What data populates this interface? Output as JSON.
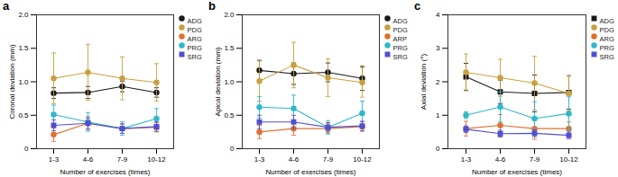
{
  "chart_data": [
    {
      "type": "line",
      "title": "a",
      "xlabel": "Number of exercises (times)",
      "ylabel": "Coronal deviation (mm)",
      "categories": [
        "1-3",
        "4-6",
        "7-9",
        "10-12"
      ],
      "ylim": [
        0,
        2.0
      ],
      "yticks": [
        0,
        0.5,
        {
          "value": 1.0,
          "label": "1.0"
        },
        1.5,
        {
          "value": 2.0,
          "label": "2.0"
        }
      ],
      "grid": false,
      "legend": "upper right",
      "series": [
        {
          "name": "ADG",
          "color": "#1a1a1a",
          "marker": "circle",
          "values": [
            0.83,
            0.84,
            0.93,
            0.84
          ],
          "yerr": [
            0.08,
            0.09,
            0.08,
            0.07
          ]
        },
        {
          "name": "PDG",
          "color": "#c8a040",
          "marker": "circle",
          "values": [
            1.05,
            1.14,
            1.05,
            0.99
          ],
          "yerr": [
            0.38,
            0.42,
            0.32,
            0.28
          ]
        },
        {
          "name": "ARG",
          "color": "#e07030",
          "marker": "circle",
          "values": [
            0.21,
            0.38,
            0.3,
            0.32
          ],
          "yerr": [
            0.1,
            0.1,
            0.07,
            0.07
          ]
        },
        {
          "name": "PRG",
          "color": "#30b8c8",
          "marker": "circle",
          "values": [
            0.51,
            0.4,
            0.3,
            0.45
          ],
          "yerr": [
            0.14,
            0.14,
            0.1,
            0.15
          ]
        },
        {
          "name": "SRG",
          "color": "#5050d0",
          "marker": "square",
          "values": [
            0.35,
            0.38,
            0.3,
            0.33
          ],
          "yerr": [
            0.08,
            0.08,
            0.07,
            0.07
          ]
        }
      ]
    },
    {
      "type": "line",
      "title": "b",
      "xlabel": "Number of exercises (times)",
      "ylabel": "Apical deviation (mm)",
      "categories": [
        "1-3",
        "4-6",
        "7-9",
        "10-12"
      ],
      "ylim": [
        0,
        2.0
      ],
      "yticks": [
        0,
        0.5,
        {
          "value": 1.0,
          "label": "1.0"
        },
        1.5,
        {
          "value": 2.0,
          "label": "2.0"
        }
      ],
      "grid": false,
      "legend": "upper right",
      "series": [
        {
          "name": "ADG",
          "color": "#1a1a1a",
          "marker": "circle",
          "values": [
            1.17,
            1.12,
            1.14,
            1.05
          ],
          "yerr": [
            0.15,
            0.16,
            0.14,
            0.18
          ]
        },
        {
          "name": "PDG",
          "color": "#c8a040",
          "marker": "circle",
          "values": [
            1.01,
            1.25,
            1.06,
            0.99
          ],
          "yerr": [
            0.3,
            0.34,
            0.28,
            0.22
          ]
        },
        {
          "name": "ARP",
          "color": "#e07030",
          "marker": "circle",
          "values": [
            0.25,
            0.3,
            0.3,
            0.33
          ],
          "yerr": [
            0.1,
            0.1,
            0.07,
            0.07
          ]
        },
        {
          "name": "PRG",
          "color": "#30b8c8",
          "marker": "circle",
          "values": [
            0.62,
            0.6,
            0.32,
            0.53
          ],
          "yerr": [
            0.16,
            0.2,
            0.1,
            0.18
          ]
        },
        {
          "name": "SRG",
          "color": "#5050d0",
          "marker": "square",
          "values": [
            0.4,
            0.4,
            0.32,
            0.34
          ],
          "yerr": [
            0.1,
            0.1,
            0.07,
            0.07
          ]
        }
      ]
    },
    {
      "type": "line",
      "title": "c",
      "xlabel": "Number of exercises (times)",
      "ylabel": "Axial deviation (°)",
      "categories": [
        "1-3",
        "4-6",
        "7-9",
        "10-12"
      ],
      "ylim": [
        0,
        4
      ],
      "yticks": [
        0,
        1,
        2,
        3,
        4
      ],
      "grid": false,
      "legend": "upper right",
      "series": [
        {
          "name": "ADG",
          "color": "#1a1a1a",
          "marker": "square",
          "values": [
            2.15,
            1.7,
            1.65,
            1.68
          ],
          "yerr": [
            0.4,
            0.35,
            0.55,
            0.5
          ]
        },
        {
          "name": "PDG",
          "color": "#c8a040",
          "marker": "circle",
          "values": [
            2.28,
            2.12,
            1.96,
            1.65
          ],
          "yerr": [
            0.55,
            0.55,
            0.8,
            0.52
          ]
        },
        {
          "name": "ARG",
          "color": "#e07030",
          "marker": "circle",
          "values": [
            0.6,
            0.7,
            0.6,
            0.6
          ],
          "yerr": [
            0.22,
            0.32,
            0.32,
            0.2
          ]
        },
        {
          "name": "PRG",
          "color": "#30b8c8",
          "marker": "circle",
          "values": [
            1.0,
            1.25,
            0.9,
            1.05
          ],
          "yerr": [
            0.1,
            0.45,
            0.5,
            0.5
          ]
        },
        {
          "name": "SRG",
          "color": "#5050d0",
          "marker": "square",
          "values": [
            0.58,
            0.45,
            0.46,
            0.4
          ],
          "yerr": [
            0.1,
            0.1,
            0.1,
            0.1
          ]
        }
      ]
    }
  ]
}
